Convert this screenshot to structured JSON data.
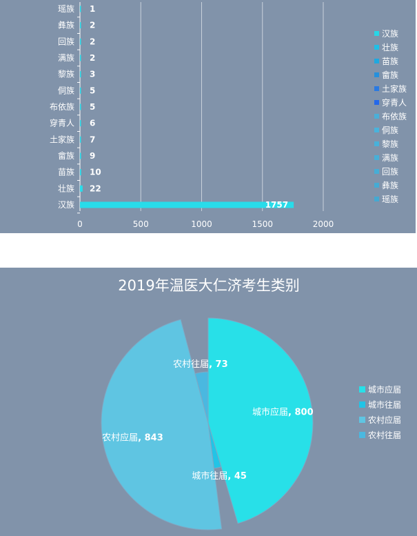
{
  "chart_data": [
    {
      "type": "bar",
      "orientation": "horizontal",
      "categories": [
        "汉族",
        "壮族",
        "苗族",
        "畲族",
        "土家族",
        "穿青人",
        "布依族",
        "侗族",
        "黎族",
        "满族",
        "回族",
        "彝族",
        "瑶族"
      ],
      "values": [
        1757,
        22,
        10,
        9,
        7,
        6,
        5,
        5,
        3,
        2,
        2,
        2,
        1
      ],
      "value_labels": [
        "1757",
        "22",
        "10",
        "9",
        "7",
        "6",
        "5",
        "5",
        "3",
        "2",
        "2",
        "2",
        "1"
      ],
      "xlim": [
        0,
        2000
      ],
      "x_ticks": [
        "0",
        "500",
        "1000",
        "1500",
        "2000"
      ],
      "grid": true,
      "legend": {
        "placement": "right",
        "entries": [
          "汉族",
          "壮族",
          "苗族",
          "畲族",
          "土家族",
          "穿青人",
          "布依族",
          "侗族",
          "黎族",
          "满族",
          "回族",
          "彝族",
          "瑶族"
        ],
        "colors": [
          "#28d6e6",
          "#20bfe6",
          "#1fa8df",
          "#2690dc",
          "#2a7ae2",
          "#2468ea",
          "#4aafd8",
          "#49b3dc",
          "#48b1da",
          "#47afd8",
          "#46add6",
          "#45abd4",
          "#44a9d2"
        ]
      },
      "bar_color": "#28dcea",
      "title": "",
      "xlabel": "",
      "ylabel": ""
    },
    {
      "type": "pie",
      "style": "rose",
      "title": "2019年温医大仁济考生类别",
      "slices": [
        {
          "name": "城市应届",
          "value": 800,
          "label": "800",
          "color": "#28e0e8"
        },
        {
          "name": "城市往届",
          "value": 45,
          "label": "45",
          "color": "#22c4e6"
        },
        {
          "name": "农村应届",
          "value": 843,
          "label": "843",
          "color": "#5fc5e2"
        },
        {
          "name": "农村往届",
          "value": 73,
          "label": "73",
          "color": "#4ab8e0"
        }
      ],
      "legend": {
        "placement": "right",
        "entries": [
          "城市应届",
          "城市往届",
          "农村应届",
          "农村往届"
        ]
      }
    }
  ]
}
